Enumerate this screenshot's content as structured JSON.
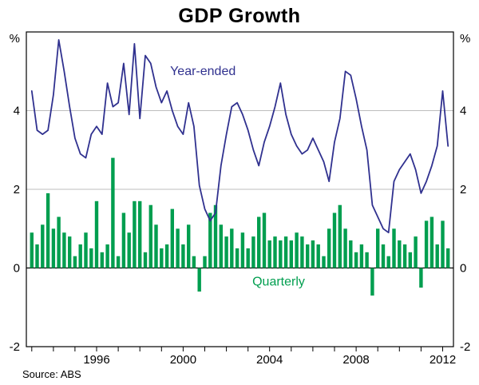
{
  "chart_data": {
    "type": "combo",
    "title": "GDP Growth",
    "source": "Source: ABS",
    "ylabel_left": "%",
    "ylabel_right": "%",
    "ylim": [
      -2,
      6
    ],
    "yticks": [
      4,
      2,
      0,
      -2
    ],
    "grid_values": [
      2,
      4
    ],
    "xlim": [
      1992.75,
      2012.5
    ],
    "xticks": [
      1996,
      2000,
      2004,
      2008,
      2012
    ],
    "x_start": 1993.0,
    "x_step": 0.25,
    "series": [
      {
        "name": "Year-ended",
        "type": "line",
        "color": "#30318F",
        "values": [
          4.5,
          3.5,
          3.4,
          3.5,
          4.4,
          5.8,
          5.0,
          4.1,
          3.3,
          2.9,
          2.8,
          3.4,
          3.6,
          3.4,
          4.7,
          4.1,
          4.2,
          5.2,
          3.9,
          5.7,
          3.8,
          5.4,
          5.2,
          4.6,
          4.2,
          4.5,
          4.0,
          3.6,
          3.4,
          4.2,
          3.6,
          2.1,
          1.5,
          1.2,
          1.4,
          2.6,
          3.4,
          4.1,
          4.2,
          3.9,
          3.5,
          3.0,
          2.6,
          3.2,
          3.6,
          4.1,
          4.7,
          3.9,
          3.4,
          3.1,
          2.9,
          3.0,
          3.3,
          3.0,
          2.7,
          2.2,
          3.2,
          3.8,
          5.0,
          4.9,
          4.3,
          3.6,
          3.0,
          1.6,
          1.3,
          1.0,
          0.9,
          2.2,
          2.5,
          2.7,
          2.9,
          2.5,
          1.9,
          2.2,
          2.6,
          3.1,
          4.5,
          3.1
        ]
      },
      {
        "name": "Quarterly",
        "type": "bar",
        "color": "#009E4F",
        "values": [
          0.9,
          0.6,
          1.1,
          1.9,
          1.0,
          1.3,
          0.9,
          0.8,
          0.3,
          0.6,
          0.9,
          0.5,
          1.7,
          0.4,
          0.6,
          2.8,
          0.3,
          1.4,
          0.9,
          1.7,
          1.7,
          0.4,
          1.6,
          1.1,
          0.5,
          0.6,
          1.5,
          1.0,
          0.6,
          1.1,
          0.3,
          -0.6,
          0.3,
          1.4,
          1.6,
          1.1,
          0.8,
          1.0,
          0.5,
          0.9,
          0.5,
          0.8,
          1.3,
          1.4,
          0.7,
          0.8,
          0.7,
          0.8,
          0.7,
          0.9,
          0.8,
          0.6,
          0.7,
          0.6,
          0.3,
          1.0,
          1.4,
          1.6,
          1.0,
          0.7,
          0.4,
          0.6,
          0.4,
          -0.7,
          1.0,
          0.6,
          0.3,
          1.0,
          0.7,
          0.6,
          0.4,
          0.8,
          -0.5,
          1.2,
          1.3,
          0.6,
          1.2,
          0.5
        ]
      }
    ],
    "annotations": [
      {
        "label": "Year-ended",
        "x": 1999.4,
        "y": 4.9,
        "color": "#30318F"
      },
      {
        "label": "Quarterly",
        "x": 2003.2,
        "y": -0.45,
        "color": "#009E4F"
      }
    ],
    "colors": {
      "grid": "#BDBDBD",
      "axis": "#000000"
    }
  }
}
